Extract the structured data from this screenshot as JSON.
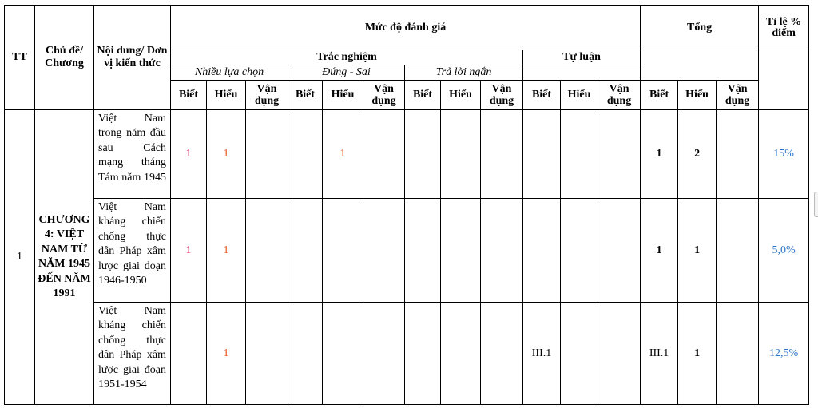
{
  "header": {
    "tt": "TT",
    "topic": "Chủ đề/ Chương",
    "content": "Nội dung/ Đơn vị kiến thức",
    "assessment_level": "Mức độ đánh giá",
    "total": "Tổng",
    "score_ratio": "Tỉ lệ % điểm",
    "multiple_format": "Trắc nghiệm",
    "essay": "Tự luận",
    "multiple_choice": "Nhiều lựa chọn",
    "true_false": "Đúng - Sai",
    "short_answer": "Trả lời ngắn",
    "levels": [
      "Biết",
      "Hiểu",
      "Vận dụng",
      "Biết",
      "Hiểu",
      "Vận dụng",
      "Biết",
      "Hiểu",
      "Vận dụng",
      "Biết",
      "Hiểu",
      "Vận dụng",
      "Biết",
      "Hiểu",
      "Vận dụng"
    ]
  },
  "body": {
    "tt": "1",
    "chapter": "CHƯƠNG 4: VIỆT NAM TỪ NĂM 1945 ĐẾN NĂM 1991",
    "rows": [
      {
        "content": "Việt Nam trong năm đầu sau Cách mạng tháng Tám năm 1945",
        "cells": [
          "1",
          "1",
          "",
          "",
          "1",
          "",
          "",
          "",
          "",
          "",
          "",
          "",
          "1",
          "2",
          ""
        ],
        "ratio": "15%"
      },
      {
        "content": "Việt Nam kháng chiến chống thực dân Pháp xâm lược giai đoạn 1946-1950",
        "cells": [
          "1",
          "1",
          "",
          "",
          "",
          "",
          "",
          "",
          "",
          "",
          "",
          "",
          "1",
          "1",
          ""
        ],
        "ratio": "5,0%"
      },
      {
        "content": "Việt Nam kháng chiến chống thực dân Pháp xâm lược giai đoạn 1951-1954",
        "cells": [
          "",
          "1",
          "",
          "",
          "",
          "",
          "",
          "",
          "",
          "III.1",
          "",
          "",
          "III.1",
          "1",
          ""
        ],
        "ratio": "12,5%"
      }
    ]
  },
  "colors": {
    "count_biet": "#e8175d",
    "count_hieu": "#e8541a",
    "ratio": "#2e75c8"
  }
}
